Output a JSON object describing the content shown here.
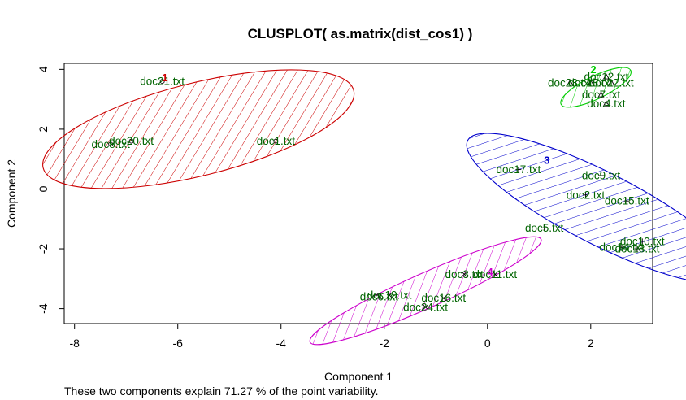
{
  "chart_data": {
    "type": "scatter",
    "title": "CLUSPLOT( as.matrix(dist_cos1) )",
    "xlabel": "Component 1",
    "ylabel": "Component 2",
    "footnote": "These two components explain 71.27 % of the point variability.",
    "xlim": [
      -8.2,
      3.2
    ],
    "ylim": [
      -4.5,
      4.2
    ],
    "xticks": [
      -8,
      -6,
      -4,
      -2,
      0,
      2
    ],
    "yticks": [
      -4,
      -2,
      0,
      2,
      4
    ],
    "grid": false,
    "legend": "none",
    "label_color": "#006400",
    "clusters": [
      {
        "id": "1",
        "color": "#cc0000",
        "hatch_angle": 45,
        "center": [
          -5.6,
          2.0
        ],
        "ellipse_rx": 3.1,
        "ellipse_ry": 1.55,
        "ellipse_angle_deg": 14,
        "label_position": [
          -6.25,
          3.72
        ],
        "point_symbol": "circle",
        "points": [
          {
            "label": "doc21.txt",
            "x": -6.3,
            "y": 3.6
          },
          {
            "label": "doc20.txt",
            "x": -6.9,
            "y": 1.6
          },
          {
            "label": "doc8.txt",
            "x": -7.3,
            "y": 1.5
          },
          {
            "label": "doc1.txt",
            "x": -4.1,
            "y": 1.6
          }
        ]
      },
      {
        "id": "2",
        "color": "#00cc00",
        "hatch_angle": 45,
        "center": [
          2.1,
          3.4
        ],
        "ellipse_rx": 0.75,
        "ellipse_ry": 0.38,
        "ellipse_angle_deg": 26,
        "label_position": [
          2.05,
          4.0
        ],
        "point_symbol": "triangle",
        "points": [
          {
            "label": "doc12.txt",
            "x": 2.3,
            "y": 3.75
          },
          {
            "label": "doc23.txt",
            "x": 1.6,
            "y": 3.55
          },
          {
            "label": "doc13.txt",
            "x": 2.0,
            "y": 3.55
          },
          {
            "label": "doc22.txt",
            "x": 2.4,
            "y": 3.55
          },
          {
            "label": "doc7.txt",
            "x": 2.2,
            "y": 3.15
          },
          {
            "label": "doc4.txt",
            "x": 2.3,
            "y": 2.85
          }
        ]
      },
      {
        "id": "3",
        "color": "#0000cc",
        "hatch_angle": 45,
        "center": [
          2.2,
          -0.65
        ],
        "ellipse_rx": 2.9,
        "ellipse_ry": 1.2,
        "ellipse_angle_deg": -27,
        "label_position": [
          1.15,
          0.97
        ],
        "point_symbol": "plus",
        "points": [
          {
            "label": "doc17.txt",
            "x": 0.6,
            "y": 0.65
          },
          {
            "label": "doc9.txt",
            "x": 2.2,
            "y": 0.45
          },
          {
            "label": "doc2.txt",
            "x": 1.9,
            "y": -0.2
          },
          {
            "label": "doc15.txt",
            "x": 2.7,
            "y": -0.4
          },
          {
            "label": "doc5.txt",
            "x": 1.1,
            "y": -1.3
          },
          {
            "label": "doc10.txt",
            "x": 3.0,
            "y": -1.75
          },
          {
            "label": "doc14.txt",
            "x": 2.6,
            "y": -1.95
          },
          {
            "label": "doc18.txt",
            "x": 2.9,
            "y": -2.0
          }
        ]
      },
      {
        "id": "4",
        "color": "#cc00cc",
        "hatch_angle": 45,
        "center": [
          -1.2,
          -3.4
        ],
        "ellipse_rx": 2.45,
        "ellipse_ry": 0.58,
        "ellipse_angle_deg": 24,
        "label_position": [
          0.05,
          -2.78
        ],
        "point_symbol": "x",
        "points": [
          {
            "label": "doc3.txt",
            "x": -0.45,
            "y": -2.85
          },
          {
            "label": "doc11.txt",
            "x": 0.15,
            "y": -2.85
          },
          {
            "label": "doc6.txt",
            "x": -2.1,
            "y": -3.6
          },
          {
            "label": "doc19.txt",
            "x": -1.9,
            "y": -3.55
          },
          {
            "label": "doc16.txt",
            "x": -0.85,
            "y": -3.65
          },
          {
            "label": "doc24.txt",
            "x": -1.2,
            "y": -3.95
          }
        ]
      }
    ]
  }
}
